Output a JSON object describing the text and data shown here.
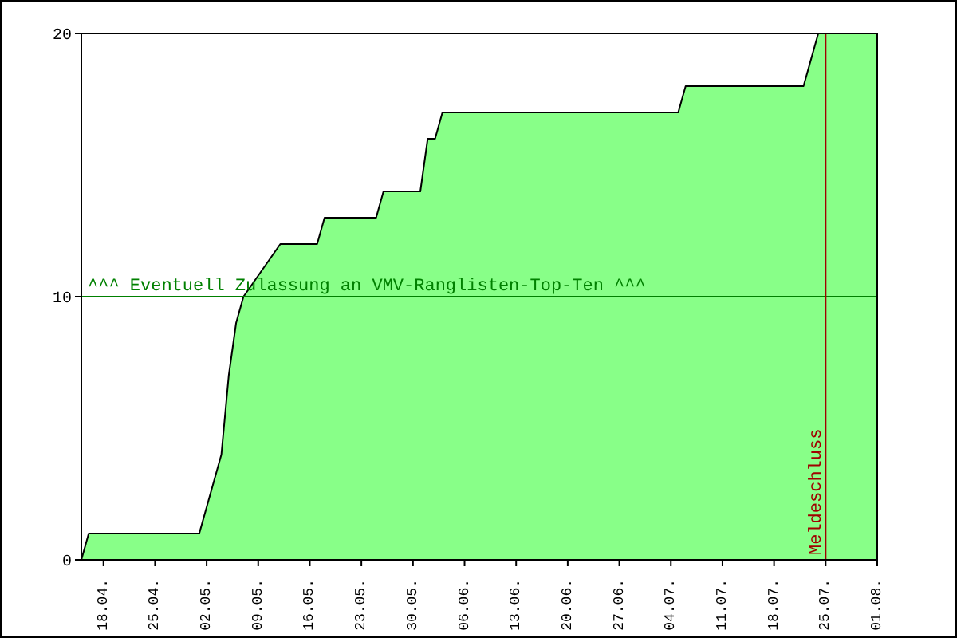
{
  "chart_data": {
    "type": "area",
    "x": [
      "--04-15",
      "--04-16",
      "--05-01",
      "--05-02",
      "--05-03",
      "--05-04",
      "--05-05",
      "--05-06",
      "--05-07",
      "--05-12",
      "--05-17",
      "--05-18",
      "--05-25",
      "--05-26",
      "--05-31",
      "--06-01",
      "--06-02",
      "--06-03",
      "--07-05",
      "--07-06",
      "--07-22",
      "--07-24",
      "--08-01"
    ],
    "series": [
      {
        "color": "#88ff88",
        "values": [
          0,
          1,
          1,
          2,
          3,
          4,
          7,
          9,
          10,
          12,
          12,
          13,
          13,
          14,
          14,
          16,
          16,
          17,
          17,
          18,
          18,
          20,
          20
        ]
      }
    ],
    "xlim": [
      "--04-15",
      "--08-01"
    ],
    "xticks": [
      {
        "value": "--04-18",
        "label": "18.04."
      },
      {
        "value": "--04-25",
        "label": "25.04."
      },
      {
        "value": "--05-02",
        "label": "02.05."
      },
      {
        "value": "--05-09",
        "label": "09.05."
      },
      {
        "value": "--05-16",
        "label": "16.05."
      },
      {
        "value": "--05-23",
        "label": "23.05."
      },
      {
        "value": "--05-30",
        "label": "30.05."
      },
      {
        "value": "--06-06",
        "label": "06.06."
      },
      {
        "value": "--06-13",
        "label": "13.06."
      },
      {
        "value": "--06-20",
        "label": "20.06."
      },
      {
        "value": "--06-27",
        "label": "27.06."
      },
      {
        "value": "--07-04",
        "label": "04.07."
      },
      {
        "value": "--07-11",
        "label": "11.07."
      },
      {
        "value": "--07-18",
        "label": "18.07."
      },
      {
        "value": "--07-25",
        "label": "25.07."
      },
      {
        "value": "--08-01",
        "label": "01.08."
      }
    ],
    "ylim": [
      0,
      20
    ],
    "yticks": [
      0,
      10,
      20
    ],
    "ref_lines": [
      {
        "axis": "y",
        "value": 10,
        "label": "^^^ Eventuell Zulassung an VMV-Ranglisten-Top-Ten ^^^",
        "color": "#008000"
      },
      {
        "axis": "x",
        "value": "--07-25",
        "label": "Meldeschluss",
        "color": "#a00000"
      }
    ],
    "grid": false,
    "legend": false
  }
}
